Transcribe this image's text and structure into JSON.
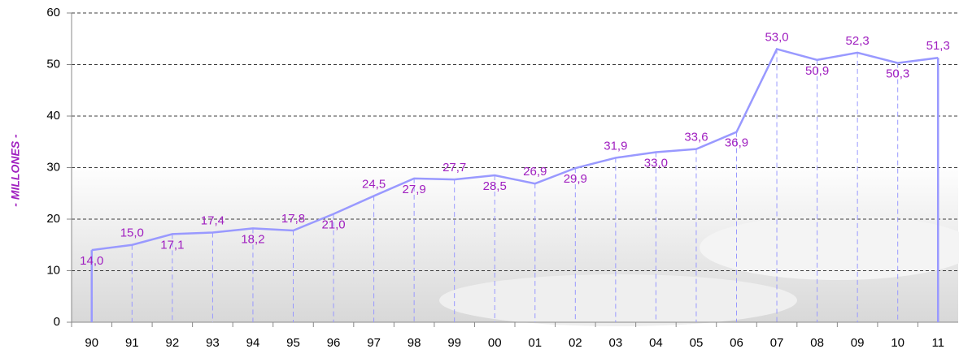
{
  "chart_data": {
    "type": "line",
    "y_label": "- MILLONES -",
    "categories": [
      "90",
      "91",
      "92",
      "93",
      "94",
      "95",
      "96",
      "97",
      "98",
      "99",
      "00",
      "01",
      "02",
      "03",
      "04",
      "05",
      "06",
      "07",
      "08",
      "09",
      "10",
      "11"
    ],
    "values": [
      14.0,
      15.0,
      17.1,
      17.4,
      18.2,
      17.8,
      21.0,
      24.5,
      27.9,
      27.7,
      28.5,
      26.9,
      29.9,
      31.9,
      33.0,
      33.6,
      36.9,
      53.0,
      50.9,
      52.3,
      50.3,
      51.3
    ],
    "value_labels": [
      "14,0",
      "15,0",
      "17,1",
      "17,4",
      "18,2",
      "17,8",
      "21,0",
      "24,5",
      "27,9",
      "27,7",
      "28,5",
      "26,9",
      "29,9",
      "31,9",
      "33,0",
      "33,6",
      "36,9",
      "53,0",
      "50,9",
      "52,3",
      "50,3",
      "51,3"
    ],
    "color": "#9999ff",
    "label_color": "#a020c0",
    "ylim": [
      0,
      60
    ],
    "yticks": [
      0,
      10,
      20,
      30,
      40,
      50,
      60
    ],
    "grid": true
  }
}
